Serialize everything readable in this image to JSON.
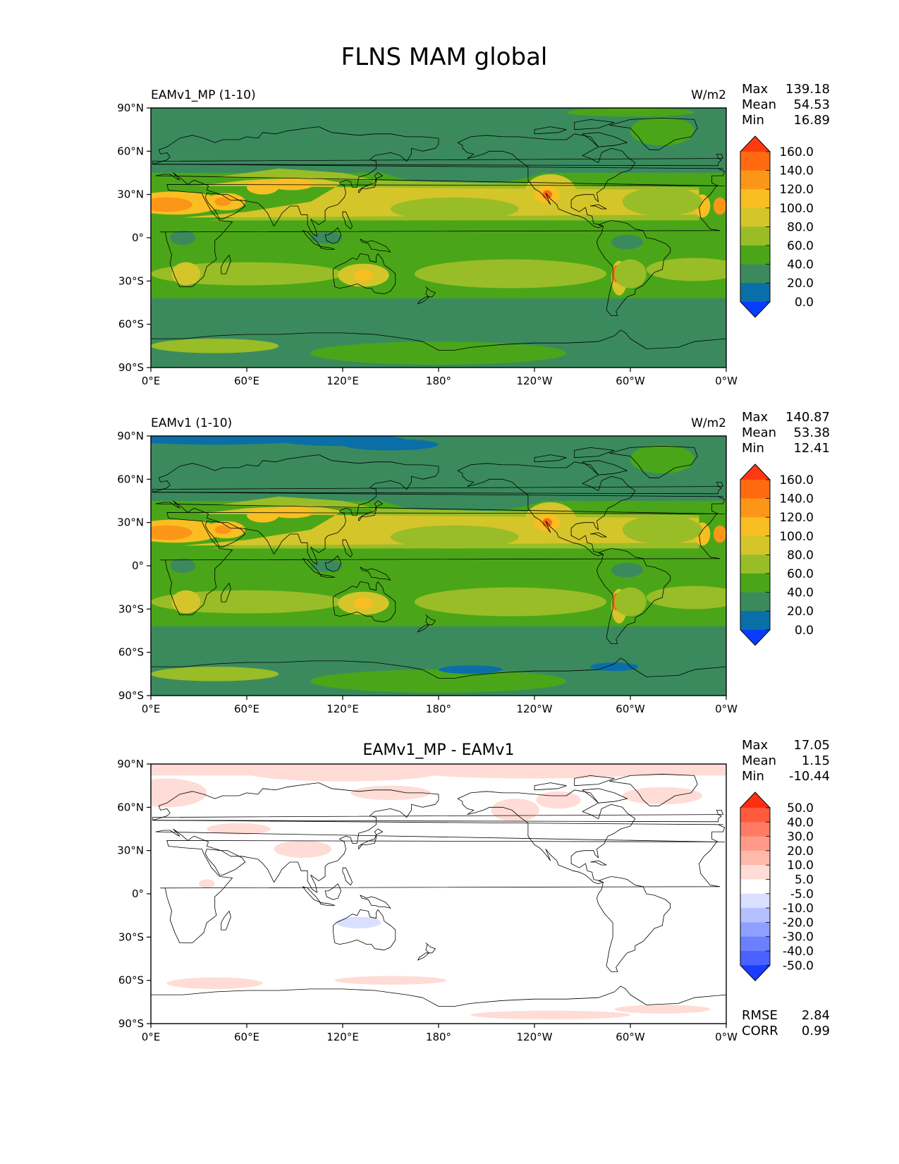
{
  "title": "FLNS MAM global",
  "panels": [
    {
      "name": "EAMv1_MP (1-10)",
      "units": "W/m2",
      "stats": {
        "max_label": "Max",
        "max": "139.18",
        "mean_label": "Mean",
        "mean": "54.53",
        "min_label": "Min",
        "min": "16.89"
      },
      "colorbar": {
        "levels": [
          "160.0",
          "140.0",
          "120.0",
          "100.0",
          "80.0",
          "60.0",
          "40.0",
          "20.0",
          "0.0"
        ],
        "colors": [
          "#ff3a10",
          "#ff6a10",
          "#fb9618",
          "#f9be22",
          "#d4c52b",
          "#99bd27",
          "#4aa618",
          "#3b8a5e",
          "#0a6fa8",
          "#0a3cff"
        ]
      }
    },
    {
      "name": "EAMv1 (1-10)",
      "units": "W/m2",
      "stats": {
        "max_label": "Max",
        "max": "140.87",
        "mean_label": "Mean",
        "mean": "53.38",
        "min_label": "Min",
        "min": "12.41"
      },
      "colorbar": {
        "levels": [
          "160.0",
          "140.0",
          "120.0",
          "100.0",
          "80.0",
          "60.0",
          "40.0",
          "20.0",
          "0.0"
        ],
        "colors": [
          "#ff3a10",
          "#ff6a10",
          "#fb9618",
          "#f9be22",
          "#d4c52b",
          "#99bd27",
          "#4aa618",
          "#3b8a5e",
          "#0a6fa8",
          "#0a3cff"
        ]
      }
    },
    {
      "name": "EAMv1_MP - EAMv1",
      "units": "",
      "stats": {
        "max_label": "Max",
        "max": "17.05",
        "mean_label": "Mean",
        "mean": "1.15",
        "min_label": "Min",
        "min": "-10.44"
      },
      "colorbar": {
        "levels": [
          "50.0",
          "40.0",
          "30.0",
          "20.0",
          "10.0",
          "5.0",
          "-5.0",
          "-10.0",
          "-20.0",
          "-30.0",
          "-40.0",
          "-50.0"
        ],
        "colors": [
          "#ff2e10",
          "#ff5a3c",
          "#ff7b63",
          "#ff9a88",
          "#ffb9ab",
          "#ffdcd6",
          "#ffffff",
          "#d9dfff",
          "#b4c0ff",
          "#8ea0ff",
          "#6a80ff",
          "#4a62ff",
          "#1a3cff"
        ]
      },
      "rmse_label": "RMSE",
      "rmse": "2.84",
      "corr_label": "CORR",
      "corr": "0.99"
    }
  ],
  "axes": {
    "lat_ticks": [
      "90°N",
      "60°N",
      "30°N",
      "0°",
      "30°S",
      "60°S",
      "90°S"
    ],
    "lon_ticks": [
      "0°E",
      "60°E",
      "120°E",
      "180°",
      "120°W",
      "60°W",
      "0°W"
    ]
  }
}
